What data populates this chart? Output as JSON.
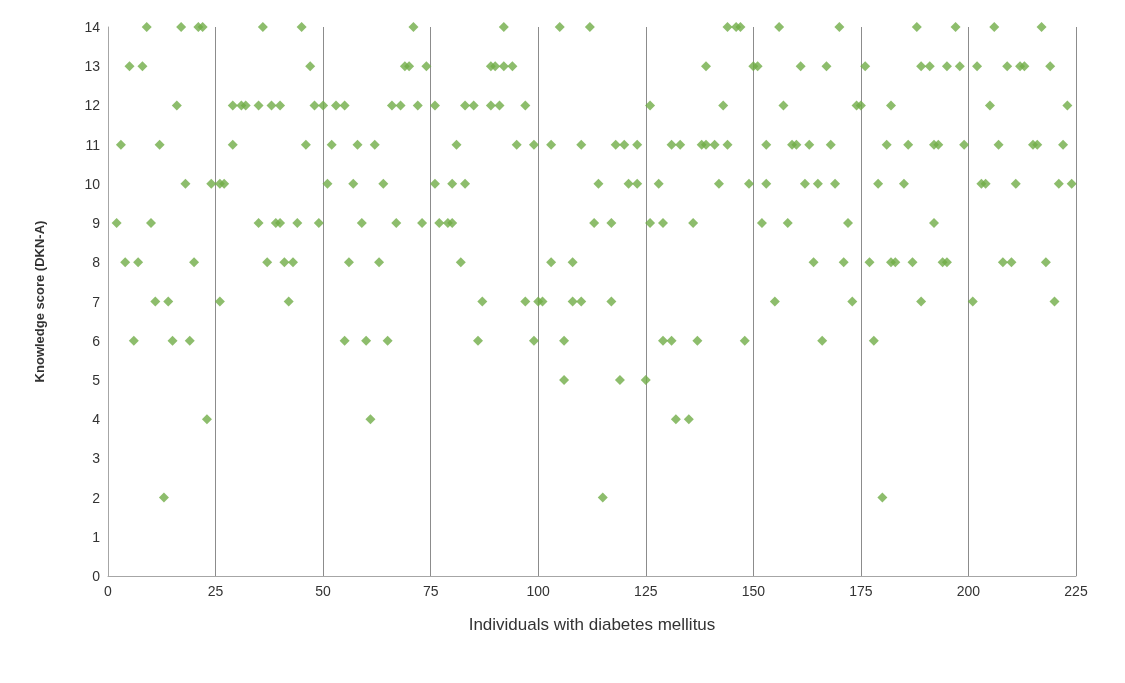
{
  "chart_data": {
    "type": "scatter",
    "xlabel": "Individuals with diabetes mellitus",
    "ylabel": "Knowledge score (DKN-A)",
    "x": [
      9,
      17,
      21,
      22,
      36,
      45,
      71,
      92,
      105,
      112,
      144,
      146,
      147,
      156,
      170,
      188,
      197,
      206,
      217,
      5,
      8,
      47,
      69,
      70,
      74,
      89,
      90,
      92,
      94,
      139,
      150,
      151,
      161,
      167,
      176,
      189,
      191,
      195,
      198,
      202,
      209,
      212,
      213,
      219,
      16,
      29,
      31,
      32,
      35,
      38,
      40,
      48,
      50,
      53,
      55,
      66,
      68,
      72,
      76,
      83,
      85,
      89,
      91,
      97,
      126,
      143,
      157,
      174,
      175,
      182,
      205,
      223,
      3,
      12,
      29,
      46,
      52,
      58,
      62,
      81,
      95,
      99,
      103,
      110,
      118,
      120,
      123,
      131,
      133,
      138,
      139,
      141,
      144,
      153,
      159,
      160,
      163,
      168,
      181,
      186,
      192,
      193,
      199,
      207,
      215,
      216,
      222,
      18,
      24,
      26,
      27,
      51,
      57,
      64,
      76,
      80,
      83,
      114,
      121,
      123,
      128,
      142,
      149,
      153,
      162,
      165,
      169,
      179,
      185,
      203,
      204,
      211,
      221,
      224,
      2,
      10,
      35,
      39,
      40,
      44,
      49,
      59,
      67,
      73,
      77,
      79,
      80,
      113,
      117,
      126,
      129,
      136,
      152,
      158,
      172,
      192,
      4,
      7,
      20,
      37,
      41,
      43,
      56,
      63,
      82,
      103,
      108,
      164,
      171,
      177,
      182,
      183,
      187,
      194,
      195,
      208,
      210,
      218,
      11,
      14,
      26,
      42,
      87,
      97,
      100,
      101,
      108,
      110,
      117,
      155,
      173,
      189,
      201,
      220,
      6,
      15,
      19,
      55,
      60,
      65,
      86,
      99,
      106,
      129,
      131,
      137,
      148,
      166,
      178,
      106,
      119,
      125,
      23,
      61,
      132,
      135,
      13,
      115,
      180
    ],
    "values": [
      14,
      14,
      14,
      14,
      14,
      14,
      14,
      14,
      14,
      14,
      14,
      14,
      14,
      14,
      14,
      14,
      14,
      14,
      14,
      13,
      13,
      13,
      13,
      13,
      13,
      13,
      13,
      13,
      13,
      13,
      13,
      13,
      13,
      13,
      13,
      13,
      13,
      13,
      13,
      13,
      13,
      13,
      13,
      13,
      12,
      12,
      12,
      12,
      12,
      12,
      12,
      12,
      12,
      12,
      12,
      12,
      12,
      12,
      12,
      12,
      12,
      12,
      12,
      12,
      12,
      12,
      12,
      12,
      12,
      12,
      12,
      12,
      11,
      11,
      11,
      11,
      11,
      11,
      11,
      11,
      11,
      11,
      11,
      11,
      11,
      11,
      11,
      11,
      11,
      11,
      11,
      11,
      11,
      11,
      11,
      11,
      11,
      11,
      11,
      11,
      11,
      11,
      11,
      11,
      11,
      11,
      11,
      10,
      10,
      10,
      10,
      10,
      10,
      10,
      10,
      10,
      10,
      10,
      10,
      10,
      10,
      10,
      10,
      10,
      10,
      10,
      10,
      10,
      10,
      10,
      10,
      10,
      10,
      10,
      9,
      9,
      9,
      9,
      9,
      9,
      9,
      9,
      9,
      9,
      9,
      9,
      9,
      9,
      9,
      9,
      9,
      9,
      9,
      9,
      9,
      9,
      8,
      8,
      8,
      8,
      8,
      8,
      8,
      8,
      8,
      8,
      8,
      8,
      8,
      8,
      8,
      8,
      8,
      8,
      8,
      8,
      8,
      8,
      7,
      7,
      7,
      7,
      7,
      7,
      7,
      7,
      7,
      7,
      7,
      7,
      7,
      7,
      7,
      7,
      6,
      6,
      6,
      6,
      6,
      6,
      6,
      6,
      6,
      6,
      6,
      6,
      6,
      6,
      6,
      5,
      5,
      5,
      4,
      4,
      4,
      4,
      2,
      2,
      2
    ],
    "color": "#70ad47",
    "marker": "diamond",
    "xlim": [
      0,
      225
    ],
    "xticks": [
      0,
      25,
      50,
      75,
      100,
      125,
      150,
      175,
      200,
      225
    ],
    "ylim": [
      0,
      14
    ],
    "yticks": [
      0,
      1,
      2,
      3,
      4,
      5,
      6,
      7,
      8,
      9,
      10,
      11,
      12,
      13,
      14
    ],
    "grid": "x"
  }
}
